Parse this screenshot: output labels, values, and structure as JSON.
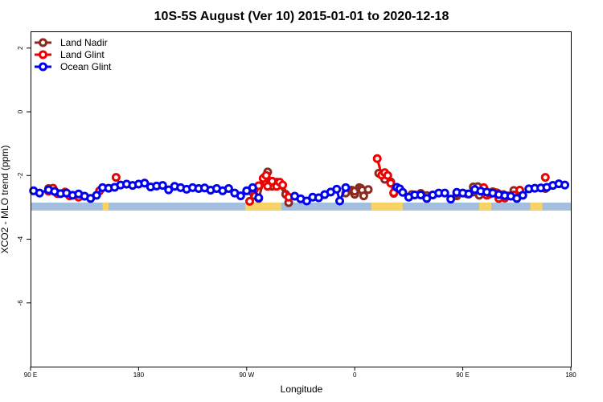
{
  "chart_data": {
    "type": "line",
    "title": "10S-5S August (Ver 10)   2015-01-01 to 2020-12-18",
    "xlabel": "Longitude",
    "ylabel": "XCO2 - MLO trend (ppm)",
    "xlim": [
      90,
      450
    ],
    "ylim": [
      -8,
      2.5
    ],
    "x_ticks": [
      {
        "value": 90,
        "label": "90 E"
      },
      {
        "value": 162,
        "label": "180"
      },
      {
        "value": 234,
        "label": "90 W"
      },
      {
        "value": 306,
        "label": "0"
      },
      {
        "value": 378,
        "label": "90 E"
      },
      {
        "value": 450,
        "label": "180"
      }
    ],
    "y_ticks": [
      {
        "value": 2,
        "label": "2"
      },
      {
        "value": 0,
        "label": "0"
      },
      {
        "value": -2,
        "label": "-2"
      },
      {
        "value": -4,
        "label": "-4"
      },
      {
        "value": -6,
        "label": "-6"
      }
    ],
    "legend_position": "top-left",
    "map_band": {
      "y_range": [
        -3.1,
        -2.85
      ],
      "ocean_color": "#a4bedd",
      "land_color": "#f7d266",
      "land_segments": [
        [
          138,
          142
        ],
        [
          233,
          257
        ],
        [
          317,
          338
        ],
        [
          389,
          397
        ],
        [
          423,
          431
        ]
      ]
    },
    "series": [
      {
        "name": "Land Nadir",
        "color": "#8b2a1e",
        "points": [
          [
            102,
            -2.41
          ],
          [
            104,
            -2.43
          ],
          [
            106,
            -2.49
          ],
          [
            113,
            -2.52
          ],
          [
            237,
            -2.49
          ],
          [
            239,
            -2.63
          ],
          [
            242,
            -2.72
          ],
          [
            246,
            -2.05
          ],
          [
            248,
            -1.89
          ],
          [
            251,
            -2.34
          ],
          [
            254,
            -2.21
          ],
          [
            260,
            -2.59
          ],
          [
            262,
            -2.85
          ],
          [
            300,
            -2.55
          ],
          [
            304,
            -2.46
          ],
          [
            305,
            -2.51
          ],
          [
            306,
            -2.59
          ],
          [
            306,
            -2.49
          ],
          [
            309,
            -2.38
          ],
          [
            310,
            -2.4
          ],
          [
            311,
            -2.46
          ],
          [
            312,
            -2.64
          ],
          [
            315,
            -2.44
          ],
          [
            322,
            -1.93
          ],
          [
            326,
            -2.12
          ],
          [
            330,
            -2.2
          ],
          [
            332,
            -2.56
          ],
          [
            344,
            -2.6
          ],
          [
            350,
            -2.56
          ],
          [
            354,
            -2.63
          ],
          [
            374,
            -2.64
          ],
          [
            374,
            -2.6
          ],
          [
            381,
            -2.58
          ],
          [
            382,
            -2.58
          ],
          [
            385,
            -2.36
          ],
          [
            385,
            -2.52
          ],
          [
            388,
            -2.35
          ],
          [
            389,
            -2.62
          ],
          [
            392,
            -2.5
          ],
          [
            398,
            -2.51
          ],
          [
            401,
            -2.55
          ],
          [
            404,
            -2.61
          ],
          [
            405,
            -2.6
          ],
          [
            406,
            -2.64
          ],
          [
            406,
            -2.67
          ],
          [
            408,
            -2.64
          ],
          [
            412,
            -2.47
          ],
          [
            433,
            -2.41
          ]
        ]
      },
      {
        "name": "Land Glint",
        "color": "#ee0000",
        "points": [
          [
            102,
            -2.49
          ],
          [
            105,
            -2.4
          ],
          [
            108,
            -2.57
          ],
          [
            113,
            -2.54
          ],
          [
            116,
            -2.64
          ],
          [
            122,
            -2.68
          ],
          [
            136,
            -2.48
          ],
          [
            147,
            -2.06
          ],
          [
            236,
            -2.81
          ],
          [
            239,
            -2.45
          ],
          [
            242,
            -2.32
          ],
          [
            245,
            -2.09
          ],
          [
            247,
            -2.0
          ],
          [
            248,
            -2.34
          ],
          [
            251,
            -2.18
          ],
          [
            254,
            -2.34
          ],
          [
            256,
            -2.21
          ],
          [
            258,
            -2.3
          ],
          [
            262,
            -2.68
          ],
          [
            321,
            -1.47
          ],
          [
            324,
            -1.99
          ],
          [
            326,
            -1.91
          ],
          [
            328,
            -2.0
          ],
          [
            330,
            -2.24
          ],
          [
            332,
            -2.54
          ],
          [
            386,
            -2.46
          ],
          [
            392,
            -2.38
          ],
          [
            394,
            -2.62
          ],
          [
            396,
            -2.58
          ],
          [
            400,
            -2.54
          ],
          [
            402,
            -2.72
          ],
          [
            406,
            -2.71
          ],
          [
            412,
            -2.61
          ],
          [
            416,
            -2.46
          ],
          [
            433,
            -2.06
          ]
        ]
      },
      {
        "name": "Ocean Glint",
        "color": "#0000ee",
        "points": [
          [
            92,
            -2.48
          ],
          [
            96,
            -2.55
          ],
          [
            102,
            -2.45
          ],
          [
            106,
            -2.5
          ],
          [
            110,
            -2.57
          ],
          [
            114,
            -2.55
          ],
          [
            118,
            -2.62
          ],
          [
            122,
            -2.58
          ],
          [
            126,
            -2.65
          ],
          [
            130,
            -2.72
          ],
          [
            134,
            -2.62
          ],
          [
            138,
            -2.38
          ],
          [
            142,
            -2.4
          ],
          [
            146,
            -2.37
          ],
          [
            150,
            -2.3
          ],
          [
            154,
            -2.27
          ],
          [
            158,
            -2.31
          ],
          [
            162,
            -2.27
          ],
          [
            166,
            -2.24
          ],
          [
            170,
            -2.36
          ],
          [
            174,
            -2.33
          ],
          [
            178,
            -2.31
          ],
          [
            182,
            -2.45
          ],
          [
            186,
            -2.34
          ],
          [
            190,
            -2.38
          ],
          [
            194,
            -2.43
          ],
          [
            198,
            -2.38
          ],
          [
            202,
            -2.41
          ],
          [
            206,
            -2.39
          ],
          [
            210,
            -2.46
          ],
          [
            214,
            -2.41
          ],
          [
            218,
            -2.48
          ],
          [
            222,
            -2.41
          ],
          [
            226,
            -2.55
          ],
          [
            230,
            -2.64
          ],
          [
            234,
            -2.48
          ],
          [
            238,
            -2.38
          ],
          [
            242,
            -2.7
          ],
          [
            266,
            -2.65
          ],
          [
            270,
            -2.73
          ],
          [
            274,
            -2.8
          ],
          [
            278,
            -2.68
          ],
          [
            282,
            -2.7
          ],
          [
            286,
            -2.6
          ],
          [
            290,
            -2.52
          ],
          [
            294,
            -2.43
          ],
          [
            296,
            -2.8
          ],
          [
            300,
            -2.38
          ],
          [
            334,
            -2.37
          ],
          [
            336,
            -2.42
          ],
          [
            338,
            -2.53
          ],
          [
            342,
            -2.68
          ],
          [
            346,
            -2.61
          ],
          [
            350,
            -2.61
          ],
          [
            354,
            -2.72
          ],
          [
            358,
            -2.61
          ],
          [
            362,
            -2.55
          ],
          [
            366,
            -2.55
          ],
          [
            370,
            -2.74
          ],
          [
            374,
            -2.53
          ],
          [
            378,
            -2.55
          ],
          [
            382,
            -2.58
          ],
          [
            386,
            -2.44
          ],
          [
            390,
            -2.49
          ],
          [
            394,
            -2.52
          ],
          [
            398,
            -2.55
          ],
          [
            402,
            -2.6
          ],
          [
            406,
            -2.63
          ],
          [
            410,
            -2.65
          ],
          [
            414,
            -2.72
          ],
          [
            418,
            -2.62
          ],
          [
            422,
            -2.42
          ],
          [
            426,
            -2.4
          ],
          [
            430,
            -2.39
          ],
          [
            434,
            -2.37
          ],
          [
            438,
            -2.31
          ],
          [
            442,
            -2.26
          ],
          [
            446,
            -2.3
          ]
        ]
      }
    ]
  }
}
